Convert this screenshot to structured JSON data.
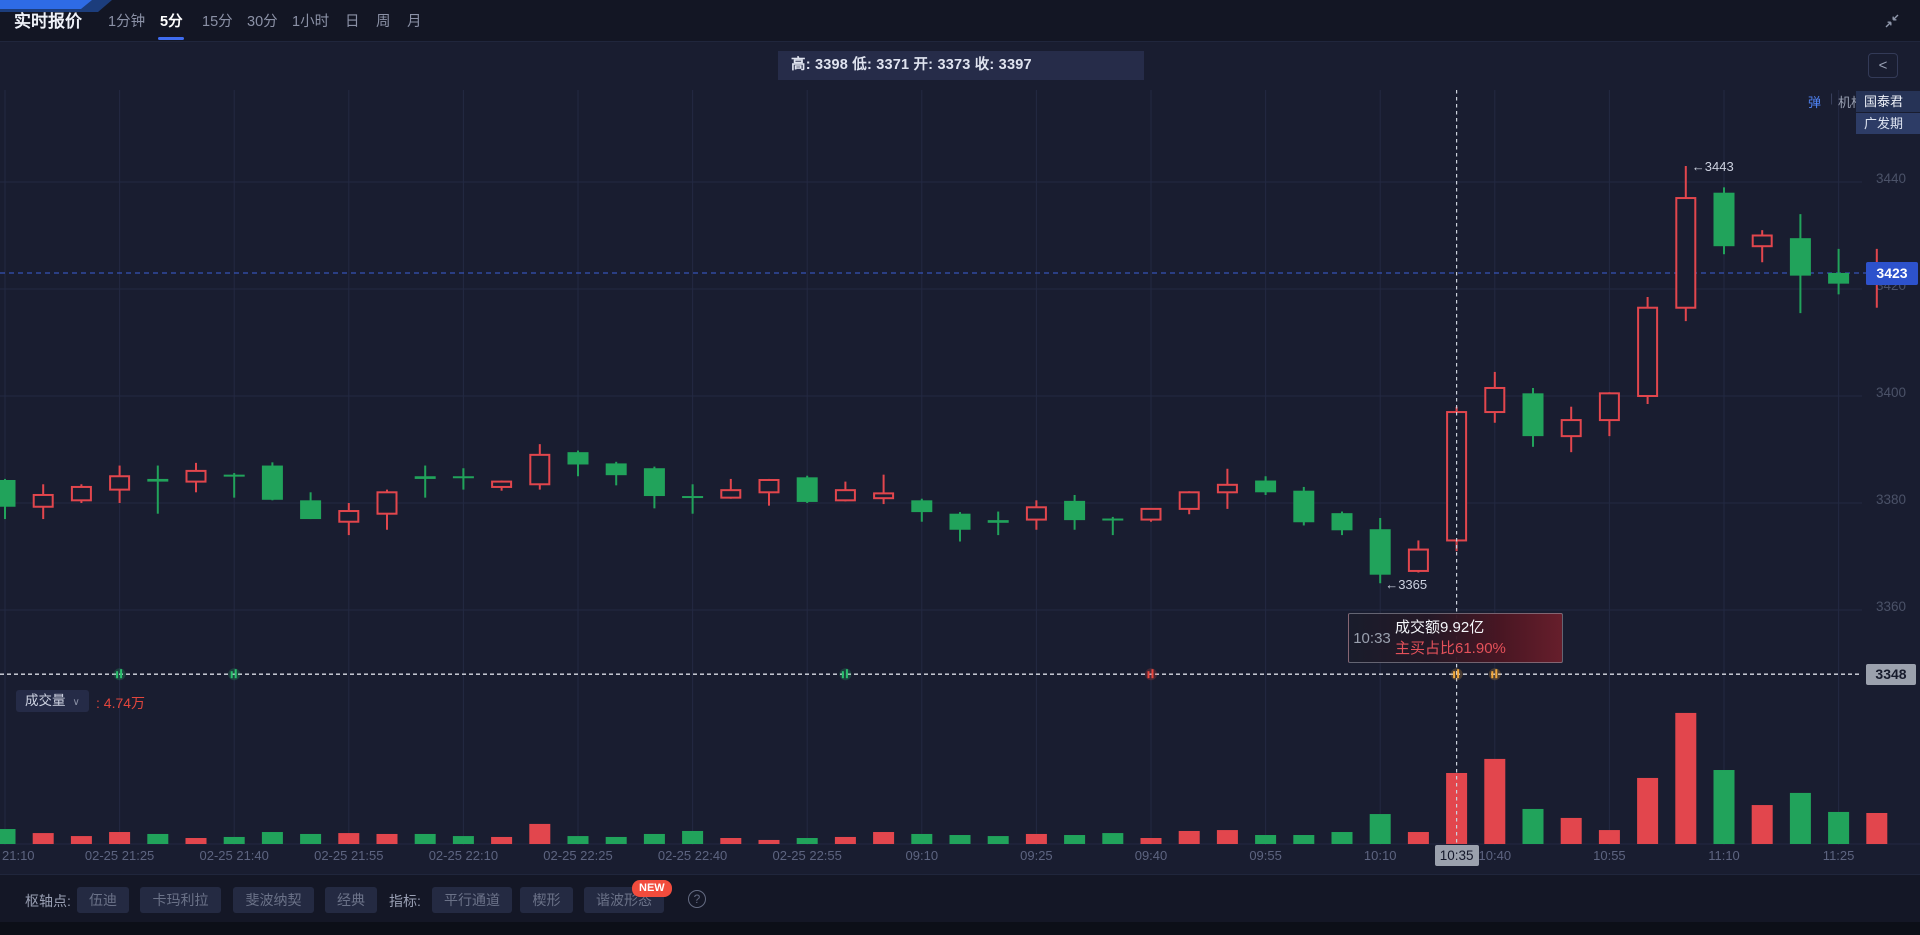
{
  "colors": {
    "up": "#e2464d",
    "down": "#21a35b",
    "accent": "#3f6cf0",
    "price_tag_bg": "#2d52cc",
    "gray_tag_bg": "#9ba1ad",
    "red_text": "#e2463d",
    "bg": "#191d30",
    "grid": "#232942"
  },
  "nav": {
    "title": "实时报价",
    "tabs": [
      "1分钟",
      "5分",
      "15分",
      "30分",
      "1小时",
      "日",
      "周",
      "月"
    ],
    "active_tab": "5分"
  },
  "ohlc_bar": {
    "text": "高: 3398 低: 3371 开: 3373 收: 3397"
  },
  "right_panel": {
    "danmu": "弹",
    "divider": "|",
    "inst": "机构",
    "brokers": [
      "国泰君",
      "广发期"
    ],
    "back": "<"
  },
  "tooltip": {
    "time": "10:33",
    "line1": "成交额9.92亿",
    "line2": "主买占比61.90%"
  },
  "volume_header": {
    "label": "成交量",
    "value": ": 4.74万"
  },
  "toolbar": {
    "pivot_label": "枢轴点:",
    "pivot_buttons": [
      "伍迪",
      "卡玛利拉",
      "斐波纳契",
      "经典"
    ],
    "indicator_label": "指标:",
    "indicator_buttons": [
      "平行通道",
      "楔形",
      "谐波形态"
    ],
    "new_badge": "NEW",
    "help": "?"
  },
  "chart_data": {
    "type": "candlestick+volume",
    "y_ticks": [
      3440,
      3420,
      3400,
      3380,
      3360
    ],
    "x_tick_labels": [
      "21:10",
      "02-25 21:25",
      "02-25 21:40",
      "02-25 21:55",
      "02-25 22:10",
      "02-25 22:25",
      "02-25 22:40",
      "02-25 22:55",
      "09:10",
      "09:25",
      "09:40",
      "09:55",
      "10:10",
      "10:40",
      "10:55",
      "11:10",
      "11:25"
    ],
    "last_price": 3423,
    "session_low_line": 3348,
    "high_annotation": {
      "index": 44,
      "price": 3443,
      "label": "←3443"
    },
    "low_annotation": {
      "index": 36,
      "price": 3365,
      "label": "←3365"
    },
    "crosshair": {
      "index": 38,
      "label": "10:35"
    },
    "markers": [
      {
        "index": 3,
        "color": "#2bc06d"
      },
      {
        "index": 6,
        "color": "#2bc06d"
      },
      {
        "index": 22,
        "color": "#2bc06d"
      },
      {
        "index": 30,
        "color": "#e8463d"
      },
      {
        "index": 38,
        "color": "#f2a93c"
      },
      {
        "index": 39,
        "color": "#f2a93c"
      }
    ],
    "volume_unit": "万手",
    "candles": [
      {
        "t": "21:10",
        "o": 3384.3,
        "h": 3384.5,
        "l": 3377.0,
        "c": 3379.3,
        "v": 1.0
      },
      {
        "t": "21:15",
        "o": 3379.3,
        "h": 3383.5,
        "l": 3377.0,
        "c": 3381.5,
        "v": 0.73
      },
      {
        "t": "21:20",
        "o": 3380.5,
        "h": 3383.5,
        "l": 3380.0,
        "c": 3383.0,
        "v": 0.53
      },
      {
        "t": "21:25",
        "o": 3382.5,
        "h": 3387.0,
        "l": 3380.0,
        "c": 3385.0,
        "v": 0.8
      },
      {
        "t": "21:30",
        "o": 3384.5,
        "h": 3387.0,
        "l": 3378.0,
        "c": 3384.0,
        "v": 0.67
      },
      {
        "t": "21:35",
        "o": 3384.0,
        "h": 3387.5,
        "l": 3382.0,
        "c": 3386.0,
        "v": 0.4
      },
      {
        "t": "21:40",
        "o": 3385.3,
        "h": 3385.6,
        "l": 3381.0,
        "c": 3385.0,
        "v": 0.47
      },
      {
        "t": "21:45",
        "o": 3387.0,
        "h": 3387.6,
        "l": 3380.5,
        "c": 3380.6,
        "v": 0.8
      },
      {
        "t": "21:50",
        "o": 3380.5,
        "h": 3382.0,
        "l": 3377.0,
        "c": 3377.0,
        "v": 0.67
      },
      {
        "t": "21:55",
        "o": 3376.5,
        "h": 3380.0,
        "l": 3374.0,
        "c": 3378.5,
        "v": 0.73
      },
      {
        "t": "22:00",
        "o": 3378.0,
        "h": 3382.5,
        "l": 3375.0,
        "c": 3382.0,
        "v": 0.67
      },
      {
        "t": "22:05",
        "o": 3385.0,
        "h": 3387.0,
        "l": 3381.0,
        "c": 3384.5,
        "v": 0.67
      },
      {
        "t": "22:10",
        "o": 3385.0,
        "h": 3386.5,
        "l": 3382.5,
        "c": 3384.8,
        "v": 0.53
      },
      {
        "t": "22:15",
        "o": 3383.0,
        "h": 3384.2,
        "l": 3382.3,
        "c": 3384.0,
        "v": 0.47
      },
      {
        "t": "22:20",
        "o": 3383.5,
        "h": 3391.0,
        "l": 3382.5,
        "c": 3389.0,
        "v": 1.34
      },
      {
        "t": "22:25",
        "o": 3389.5,
        "h": 3389.8,
        "l": 3385.0,
        "c": 3387.2,
        "v": 0.53
      },
      {
        "t": "22:30",
        "o": 3387.4,
        "h": 3387.7,
        "l": 3383.3,
        "c": 3385.2,
        "v": 0.47
      },
      {
        "t": "22:35",
        "o": 3386.5,
        "h": 3386.8,
        "l": 3379.0,
        "c": 3381.3,
        "v": 0.67
      },
      {
        "t": "22:40",
        "o": 3381.3,
        "h": 3383.5,
        "l": 3378.0,
        "c": 3381.0,
        "v": 0.87
      },
      {
        "t": "22:45",
        "o": 3381.0,
        "h": 3384.5,
        "l": 3380.8,
        "c": 3382.4,
        "v": 0.4
      },
      {
        "t": "22:50",
        "o": 3382.0,
        "h": 3384.5,
        "l": 3379.5,
        "c": 3384.3,
        "v": 0.27
      },
      {
        "t": "22:55",
        "o": 3384.8,
        "h": 3385.1,
        "l": 3380.0,
        "c": 3380.2,
        "v": 0.4
      },
      {
        "t": "23:00",
        "o": 3380.5,
        "h": 3384.0,
        "l": 3380.3,
        "c": 3382.4,
        "v": 0.47
      },
      {
        "t": "09:05",
        "o": 3380.9,
        "h": 3385.3,
        "l": 3379.8,
        "c": 3381.8,
        "v": 0.8
      },
      {
        "t": "09:10",
        "o": 3380.5,
        "h": 3380.8,
        "l": 3376.5,
        "c": 3378.3,
        "v": 0.67
      },
      {
        "t": "09:15",
        "o": 3378.0,
        "h": 3378.3,
        "l": 3372.8,
        "c": 3375.0,
        "v": 0.6
      },
      {
        "t": "09:20",
        "o": 3376.8,
        "h": 3378.4,
        "l": 3374.0,
        "c": 3376.3,
        "v": 0.53
      },
      {
        "t": "09:25",
        "o": 3376.9,
        "h": 3380.5,
        "l": 3375.0,
        "c": 3379.2,
        "v": 0.67
      },
      {
        "t": "09:30",
        "o": 3380.4,
        "h": 3381.5,
        "l": 3375.0,
        "c": 3376.8,
        "v": 0.6
      },
      {
        "t": "09:35",
        "o": 3377.1,
        "h": 3377.4,
        "l": 3374.0,
        "c": 3377.0,
        "v": 0.73
      },
      {
        "t": "09:40",
        "o": 3376.9,
        "h": 3379.0,
        "l": 3376.5,
        "c": 3378.9,
        "v": 0.4
      },
      {
        "t": "09:45",
        "o": 3378.9,
        "h": 3382.2,
        "l": 3377.9,
        "c": 3382.0,
        "v": 0.87
      },
      {
        "t": "09:50",
        "o": 3382.0,
        "h": 3386.4,
        "l": 3378.9,
        "c": 3383.4,
        "v": 0.93
      },
      {
        "t": "09:55",
        "o": 3384.2,
        "h": 3385.0,
        "l": 3381.5,
        "c": 3382.0,
        "v": 0.6
      },
      {
        "t": "10:00",
        "o": 3382.3,
        "h": 3383.0,
        "l": 3375.8,
        "c": 3376.4,
        "v": 0.6
      },
      {
        "t": "10:05",
        "o": 3378.1,
        "h": 3378.4,
        "l": 3374.0,
        "c": 3374.9,
        "v": 0.8
      },
      {
        "t": "10:10",
        "o": 3375.1,
        "h": 3377.2,
        "l": 3365.0,
        "c": 3366.6,
        "v": 2.0
      },
      {
        "t": "10:15",
        "o": 3367.3,
        "h": 3373.0,
        "l": 3367.0,
        "c": 3371.3,
        "v": 0.8
      },
      {
        "t": "10:35",
        "o": 3373.0,
        "h": 3398.0,
        "l": 3371.0,
        "c": 3397.0,
        "v": 4.74
      },
      {
        "t": "10:40",
        "o": 3397.0,
        "h": 3404.5,
        "l": 3395.0,
        "c": 3401.5,
        "v": 5.68
      },
      {
        "t": "10:45",
        "o": 3400.5,
        "h": 3401.5,
        "l": 3390.5,
        "c": 3392.5,
        "v": 2.34
      },
      {
        "t": "10:50",
        "o": 3392.5,
        "h": 3398.0,
        "l": 3389.5,
        "c": 3395.5,
        "v": 1.74
      },
      {
        "t": "10:55",
        "o": 3395.5,
        "h": 3400.7,
        "l": 3392.5,
        "c": 3400.5,
        "v": 0.93
      },
      {
        "t": "11:00",
        "o": 3400.0,
        "h": 3418.5,
        "l": 3398.5,
        "c": 3416.5,
        "v": 4.41
      },
      {
        "t": "11:05",
        "o": 3416.5,
        "h": 3443.0,
        "l": 3414.0,
        "c": 3437.0,
        "v": 8.75
      },
      {
        "t": "11:10",
        "o": 3438.0,
        "h": 3439.0,
        "l": 3426.5,
        "c": 3428.0,
        "v": 4.94
      },
      {
        "t": "11:15",
        "o": 3428.0,
        "h": 3431.0,
        "l": 3425.0,
        "c": 3430.0,
        "v": 2.6
      },
      {
        "t": "11:20",
        "o": 3429.5,
        "h": 3434.0,
        "l": 3415.5,
        "c": 3422.5,
        "v": 3.41
      },
      {
        "t": "11:25",
        "o": 3423.0,
        "h": 3427.5,
        "l": 3419.0,
        "c": 3421.0,
        "v": 2.14
      },
      {
        "t": "11:30",
        "o": 3421.0,
        "h": 3427.5,
        "l": 3416.5,
        "c": 3423.0,
        "v": 2.07
      }
    ]
  }
}
